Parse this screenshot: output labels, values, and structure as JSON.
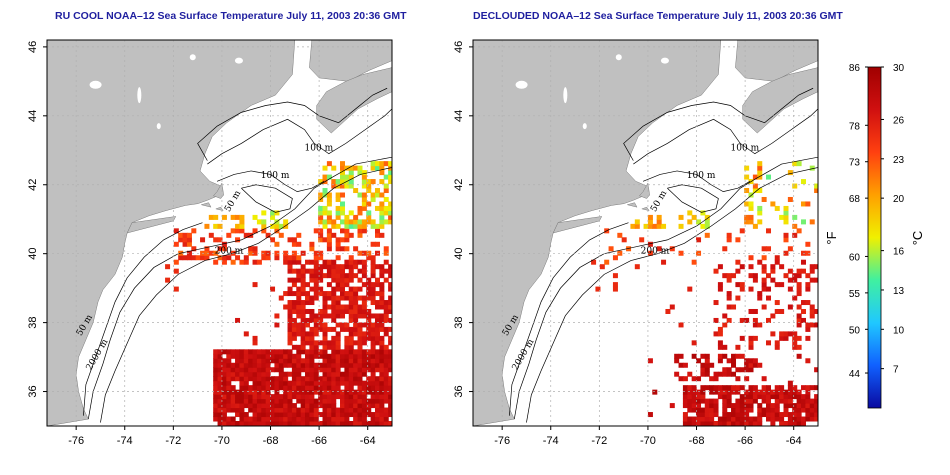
{
  "panels": [
    {
      "title": "RU COOL NOAA–12 Sea Surface Temperature July 11, 2003 20:36 GMT",
      "contour_labels": [
        "100 m",
        "100 m",
        "50 m",
        "200 m",
        "50 m",
        "2000 m"
      ]
    },
    {
      "title": "DECLOUDED NOAA–12 Sea Surface Temperature July 11, 2003 20:36 GMT",
      "contour_labels": [
        "100 m",
        "100 m",
        "50 m",
        "200 m",
        "50 m",
        "2000 m"
      ]
    }
  ],
  "chart_data": [
    {
      "type": "heatmap",
      "title": "RU COOL NOAA–12 Sea Surface Temperature July 11, 2003 20:36 GMT",
      "x_ticks": [
        -76,
        -74,
        -72,
        -70,
        -68,
        -66,
        -64
      ],
      "y_ticks": [
        36,
        38,
        40,
        42,
        44,
        46
      ],
      "xlim": [
        -77.2,
        -63.0
      ],
      "ylim": [
        35.0,
        46.2
      ],
      "grid": true,
      "features": {
        "land_color": "#c0c0c0",
        "cloud_color": "#ffffff",
        "isobaths_m": [
          50,
          100,
          200,
          2000
        ]
      }
    },
    {
      "type": "heatmap",
      "title": "DECLOUDED NOAA–12 Sea Surface Temperature July 11, 2003 20:36 GMT",
      "x_ticks": [
        -76,
        -74,
        -72,
        -70,
        -68,
        -66,
        -64
      ],
      "y_ticks": [
        36,
        38,
        40,
        42,
        44,
        46
      ],
      "xlim": [
        -77.2,
        -63.0
      ],
      "ylim": [
        35.0,
        46.2
      ],
      "grid": true
    }
  ],
  "colorbar": {
    "celsius_ticks": [
      "30",
      "26",
      "23",
      "20",
      "16",
      "13",
      "10",
      "7"
    ],
    "fahrenheit_ticks": [
      "86",
      "78",
      "73",
      "68",
      "60",
      "55",
      "50",
      "44"
    ],
    "celsius_label": "°C",
    "fahrenheit_label": "°F",
    "range_c": [
      4,
      30
    ],
    "colors": [
      "#0a0aa0",
      "#1060ff",
      "#20c8ff",
      "#40f0a0",
      "#f0f000",
      "#ffa000",
      "#ff4010",
      "#d01010",
      "#a00000"
    ]
  }
}
